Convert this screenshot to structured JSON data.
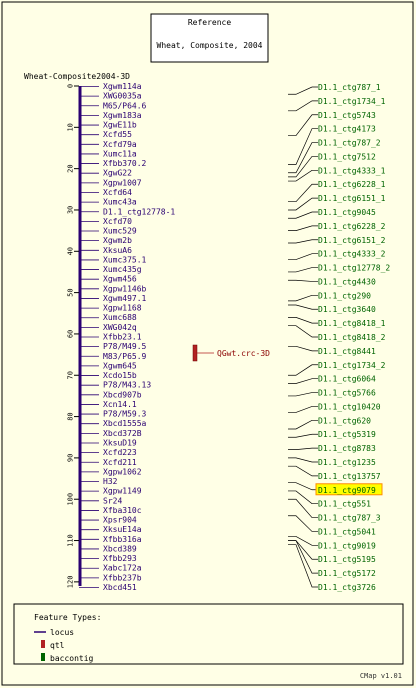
{
  "reference": {
    "title": "Reference",
    "subtitle": "Wheat, Composite, 2004"
  },
  "map": {
    "name": "Wheat-Composite2004-3D",
    "axis_ticks": [
      0,
      10,
      20,
      30,
      40,
      50,
      60,
      70,
      80,
      90,
      100,
      110,
      120
    ],
    "axis_max": 121
  },
  "markers": [
    "Xgwm114a",
    "XWG0035a",
    "M65/P64.6",
    "Xgwm183a",
    "XgwE11b",
    "Xcfd55",
    "Xcfd79a",
    "Xumc11a",
    "Xfbb370.2",
    "XgwG22",
    "Xgpw1007",
    "Xcfd64",
    "Xumc43a",
    "D1.1_ctg12778-1",
    "Xcfd70",
    "Xumc529",
    "Xgwm2b",
    "XksuA6",
    "Xumc375.1",
    "Xumc435g",
    "Xgwm456",
    "Xgpw1146b",
    "Xgwm497.1",
    "Xgpw1168",
    "Xumc688",
    "XWG042q",
    "Xfbb23.1",
    "P78/M49.5",
    "M83/P65.9",
    "Xgwm645",
    "Xcdo15b",
    "P78/M43.13",
    "Xbcd907b",
    "Xcn14.1",
    "P78/M59.3",
    "Xbcd1555a",
    "Xbcd372B",
    "XksuD19",
    "Xcfd223",
    "Xcfd211",
    "Xgpw1062",
    "H32",
    "Xgpw1149",
    "Sr24",
    "Xfba310c",
    "Xpsr904",
    "XksuE14a",
    "Xfbb316a",
    "Xbcd389",
    "Xfbb293",
    "Xabc172a",
    "Xfbb237b",
    "Xbcd451"
  ],
  "qtl": {
    "label": "QGwt.crc-3D",
    "color": "#b22222"
  },
  "contigs": [
    {
      "label": "D1.1_ctg787_1",
      "cm": 2
    },
    {
      "label": "D1.1_ctg1734_1",
      "cm": 6
    },
    {
      "label": "D1.1_ctg5743",
      "cm": 12
    },
    {
      "label": "D1.1_ctg4173",
      "cm": 19
    },
    {
      "label": "D1.1_ctg787_2",
      "cm": 21
    },
    {
      "label": "D1.1_ctg7512",
      "cm": 22
    },
    {
      "label": "D1.1_ctg4333_1",
      "cm": 23
    },
    {
      "label": "D1.1_ctg6228_1",
      "cm": 28
    },
    {
      "label": "D1.1_ctg6151_1",
      "cm": 30
    },
    {
      "label": "D1.1_ctg9045",
      "cm": 32
    },
    {
      "label": "D1.1_ctg6228_2",
      "cm": 35
    },
    {
      "label": "D1.1_ctg6151_2",
      "cm": 38
    },
    {
      "label": "D1.1_ctg4333_2",
      "cm": 42
    },
    {
      "label": "D1.1_ctg12778_2",
      "cm": 45
    },
    {
      "label": "D1.1_ctg4430",
      "cm": 47
    },
    {
      "label": "D1.1_ctg290",
      "cm": 52
    },
    {
      "label": "D1.1_ctg3640",
      "cm": 53
    },
    {
      "label": "D1.1_ctg8418_1",
      "cm": 56
    },
    {
      "label": "D1.1_ctg8418_2",
      "cm": 58
    },
    {
      "label": "D1.1_ctg8441",
      "cm": 63
    },
    {
      "label": "D1.1_ctg1734_2",
      "cm": 70
    },
    {
      "label": "D1.1_ctg6064",
      "cm": 72
    },
    {
      "label": "D1.1_ctg5766",
      "cm": 75
    },
    {
      "label": "D1.1_ctg10420",
      "cm": 79
    },
    {
      "label": "D1.1_ctg620",
      "cm": 83
    },
    {
      "label": "D1.1_ctg5319",
      "cm": 85
    },
    {
      "label": "D1.1_ctg8783",
      "cm": 88
    },
    {
      "label": "D1.1_ctg1235",
      "cm": 90
    },
    {
      "label": "D1.1_ctg13757",
      "cm": 92
    },
    {
      "label": "D1.1_ctg9079",
      "cm": 96
    },
    {
      "label": "D1.1_ctg551",
      "cm": 98
    },
    {
      "label": "D1.1_ctg787_3",
      "cm": 100
    },
    {
      "label": "D1.1_ctg5041",
      "cm": 104
    },
    {
      "label": "D1.1_ctg9019",
      "cm": 109
    },
    {
      "label": "D1.1_ctg5195",
      "cm": 110
    },
    {
      "label": "D1.1_ctg5172",
      "cm": 110
    },
    {
      "label": "D1.1_ctg3726",
      "cm": 111
    }
  ],
  "highlighted_contig": "D1.1_ctg9079",
  "legend": {
    "title": "Feature Types:",
    "items": [
      {
        "label": "locus",
        "color": "#2a0072",
        "icon": "line"
      },
      {
        "label": "qtl",
        "color": "#b22222",
        "icon": "box"
      },
      {
        "label": "baccontig",
        "color": "#006400",
        "icon": "box"
      }
    ]
  },
  "version": "CMap v1.01",
  "colors": {
    "background": "#ffffe6",
    "border": "#000000",
    "locus": "#2a0072",
    "contig": "#006400",
    "highlight": "#ffff00",
    "highlight_border": "#ff8c00"
  }
}
